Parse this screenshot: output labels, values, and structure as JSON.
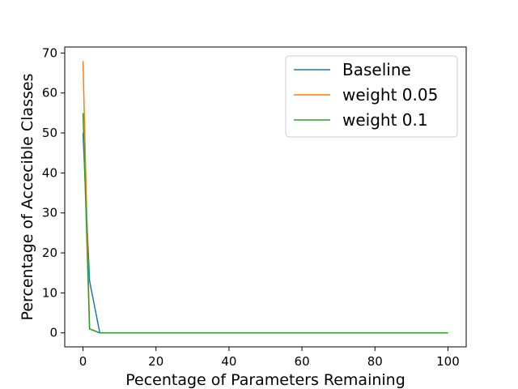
{
  "chart_data": {
    "type": "line",
    "xlabel": "Pecentage of Parameters Remaining",
    "ylabel": "Percentage of Accecible Classes",
    "xlim": [
      -5,
      105
    ],
    "ylim": [
      -3.5,
      71.5
    ],
    "xticks": [
      0,
      20,
      40,
      60,
      80,
      100
    ],
    "yticks": [
      0,
      10,
      20,
      30,
      40,
      50,
      60,
      70
    ],
    "grid": false,
    "legend_position": "top-right",
    "series": [
      {
        "name": "Baseline",
        "color": "#1f77b4",
        "x": [
          0,
          1.8,
          4.6,
          100
        ],
        "y": [
          50,
          13,
          0,
          0
        ]
      },
      {
        "name": "weight 0.05",
        "color": "#ff7f0e",
        "x": [
          0,
          1.8,
          4.6,
          100
        ],
        "y": [
          68,
          1,
          0,
          0
        ]
      },
      {
        "name": "weight 0.1",
        "color": "#2ca02c",
        "x": [
          0,
          1.8,
          4.6,
          100
        ],
        "y": [
          55,
          1,
          0,
          0
        ]
      }
    ]
  }
}
